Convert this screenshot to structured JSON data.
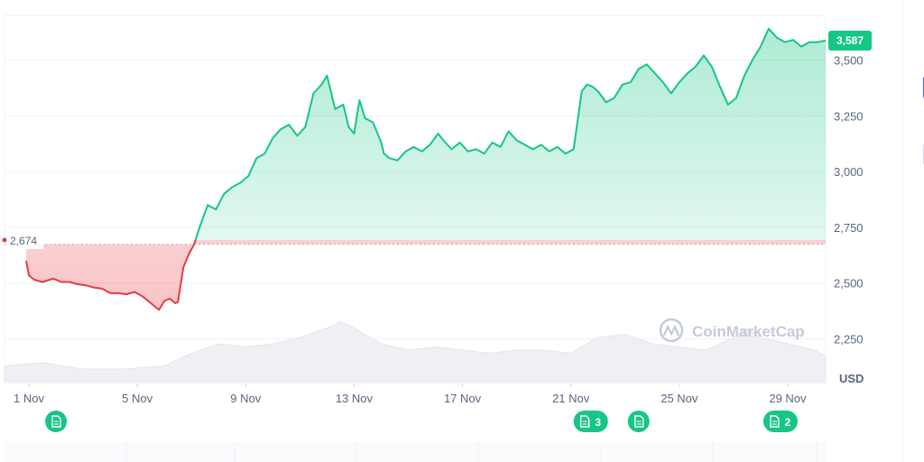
{
  "chart_data": {
    "type": "area",
    "title": "",
    "xlabel": "",
    "ylabel": "",
    "unit": "USD",
    "y_ticks": [
      2250,
      2500,
      2750,
      3000,
      3250,
      3500
    ],
    "y_tick_labels": [
      "2,250",
      "2,500",
      "2,750",
      "3,000",
      "3,250",
      "3,500"
    ],
    "ylim": [
      2050,
      3700
    ],
    "x_ticks": [
      1,
      5,
      9,
      13,
      17,
      21,
      25,
      29
    ],
    "x_tick_labels": [
      "1 Nov",
      "5 Nov",
      "9 Nov",
      "13 Nov",
      "17 Nov",
      "21 Nov",
      "25 Nov",
      "29 Nov"
    ],
    "xlim": [
      0.1,
      30.4
    ],
    "baseline": {
      "value": 2674,
      "label": "2,674"
    },
    "current": {
      "value": 3587,
      "label": "3,587"
    },
    "colors": {
      "up": "#16c784",
      "down": "#ea3943",
      "label_bg": "#16c784",
      "event": "#16c784"
    },
    "series": [
      {
        "type": "line",
        "x": [
          0.9,
          1.0,
          1.2,
          1.5,
          1.9,
          2.2,
          2.5,
          2.8,
          3.1,
          3.4,
          3.7,
          4.0,
          4.3,
          4.6,
          4.9,
          5.2,
          5.5,
          5.8,
          6.0,
          6.2,
          6.4,
          6.5,
          6.7,
          6.9,
          7.1,
          7.3,
          7.6,
          7.9,
          8.2,
          8.5,
          8.8,
          9.1,
          9.4,
          9.7,
          10.0,
          10.3,
          10.6,
          10.9,
          11.2,
          11.5,
          11.8,
          12.0,
          12.3,
          12.6,
          12.8,
          13.0,
          13.2,
          13.4,
          13.7,
          14.0,
          14.1,
          14.3,
          14.6,
          14.9,
          15.2,
          15.5,
          15.8,
          16.1,
          16.3,
          16.6,
          16.9,
          17.2,
          17.5,
          17.8,
          18.1,
          18.4,
          18.7,
          19.0,
          19.3,
          19.6,
          19.9,
          20.2,
          20.5,
          20.8,
          21.1,
          21.4,
          21.6,
          21.8,
          22.0,
          22.3,
          22.6,
          22.9,
          23.2,
          23.5,
          23.8,
          24.1,
          24.4,
          24.7,
          25.0,
          25.3,
          25.6,
          25.9,
          26.2,
          26.5,
          26.8,
          27.1,
          27.4,
          27.7,
          28.0,
          28.3,
          28.6,
          28.9,
          29.2,
          29.5,
          29.8,
          30.1,
          30.4
        ],
        "values": [
          2600,
          2535,
          2515,
          2505,
          2520,
          2505,
          2505,
          2495,
          2490,
          2480,
          2475,
          2455,
          2455,
          2450,
          2460,
          2440,
          2410,
          2380,
          2420,
          2430,
          2410,
          2415,
          2570,
          2630,
          2674,
          2750,
          2850,
          2830,
          2900,
          2930,
          2950,
          2980,
          3060,
          3080,
          3150,
          3190,
          3210,
          3160,
          3200,
          3350,
          3390,
          3430,
          3280,
          3300,
          3200,
          3170,
          3320,
          3240,
          3220,
          3130,
          3080,
          3060,
          3050,
          3090,
          3110,
          3090,
          3120,
          3170,
          3140,
          3100,
          3130,
          3090,
          3100,
          3080,
          3130,
          3110,
          3180,
          3140,
          3120,
          3100,
          3120,
          3090,
          3110,
          3080,
          3100,
          3360,
          3390,
          3380,
          3360,
          3310,
          3330,
          3390,
          3400,
          3460,
          3480,
          3440,
          3400,
          3350,
          3400,
          3440,
          3470,
          3520,
          3470,
          3380,
          3300,
          3330,
          3430,
          3500,
          3560,
          3640,
          3600,
          3580,
          3590,
          3560,
          3580,
          3580,
          3587
        ]
      }
    ],
    "volume_series": {
      "x": [
        0.1,
        1.5,
        3.0,
        4.5,
        6.0,
        7.0,
        8.0,
        9.0,
        10.0,
        11.0,
        12.0,
        12.5,
        13.0,
        14.0,
        15.0,
        16.0,
        17.0,
        18.0,
        19.0,
        20.0,
        21.0,
        22.0,
        23.0,
        24.0,
        25.0,
        26.0,
        27.0,
        27.5,
        28.0,
        29.0,
        30.0,
        30.4
      ],
      "values": [
        0.25,
        0.3,
        0.2,
        0.2,
        0.25,
        0.45,
        0.6,
        0.55,
        0.6,
        0.7,
        0.85,
        0.95,
        0.85,
        0.6,
        0.5,
        0.55,
        0.5,
        0.45,
        0.5,
        0.5,
        0.45,
        0.7,
        0.75,
        0.6,
        0.55,
        0.5,
        0.7,
        0.85,
        0.7,
        0.6,
        0.5,
        0.4
      ]
    },
    "events": [
      {
        "date": 2,
        "count": ""
      },
      {
        "date": 21.5,
        "count": "3"
      },
      {
        "date": 23.5,
        "count": ""
      },
      {
        "date": 28.5,
        "count": "2"
      }
    ],
    "grid": true,
    "watermark": "CoinMarketCap"
  }
}
